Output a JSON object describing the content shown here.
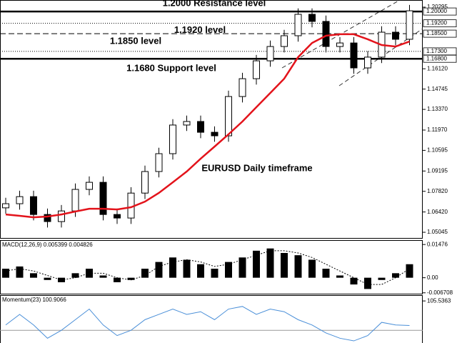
{
  "chart_data": [
    {
      "type": "candlestick",
      "annotation": "EURUSD Daily timeframe",
      "open": [
        1.067,
        1.0698,
        1.0746,
        1.0625,
        1.0577,
        1.0649,
        1.0795,
        1.0843,
        1.0625,
        1.0601,
        1.077,
        1.0916,
        1.1037,
        1.1231,
        1.1255,
        1.1182,
        1.1158,
        1.1424,
        1.1545,
        1.1666,
        1.1763,
        1.1836,
        1.1981,
        1.1933,
        1.1763,
        1.1787,
        1.1618,
        1.1691,
        1.186,
        1.1812
      ],
      "high": [
        1.0738,
        1.0786,
        1.0786,
        1.0665,
        1.0689,
        1.0835,
        1.0883,
        1.0883,
        1.0665,
        1.081,
        1.0956,
        1.1077,
        1.1271,
        1.1295,
        1.1295,
        1.1222,
        1.1464,
        1.1585,
        1.1706,
        1.1803,
        1.1876,
        1.2021,
        1.2021,
        1.1973,
        1.1827,
        1.1827,
        1.1731,
        1.19,
        1.19,
        1.2045
      ],
      "low": [
        1.063,
        1.0658,
        1.0585,
        1.0537,
        1.0537,
        1.0609,
        1.0755,
        1.0585,
        1.0561,
        1.0561,
        1.073,
        1.0876,
        1.0997,
        1.1191,
        1.1142,
        1.1118,
        1.1118,
        1.1384,
        1.1505,
        1.1626,
        1.1723,
        1.1796,
        1.1893,
        1.1723,
        1.1723,
        1.1578,
        1.1578,
        1.1651,
        1.1772,
        1.1772
      ],
      "close": [
        1.0698,
        1.0746,
        1.0625,
        1.0577,
        1.0649,
        1.0795,
        1.0843,
        1.0625,
        1.0601,
        1.077,
        1.0916,
        1.1037,
        1.1231,
        1.1255,
        1.1182,
        1.1158,
        1.1424,
        1.1545,
        1.1666,
        1.1763,
        1.1836,
        1.1981,
        1.1933,
        1.1763,
        1.1787,
        1.1618,
        1.1691,
        1.186,
        1.1812,
        1.2005
      ],
      "ma": [
        1.0625,
        1.0616,
        1.0606,
        1.0611,
        1.0625,
        1.0645,
        1.0664,
        1.0664,
        1.0659,
        1.0674,
        1.0712,
        1.0771,
        1.0843,
        1.0916,
        1.1003,
        1.1085,
        1.1168,
        1.1255,
        1.1352,
        1.1448,
        1.1545,
        1.1691,
        1.1787,
        1.1836,
        1.1846,
        1.1846,
        1.1812,
        1.1773,
        1.1763,
        1.1797
      ],
      "ma_color": "#e3131b",
      "ylim": [
        1.0466,
        1.2078
      ],
      "yticks": [
        1.20295,
        {
          "value": 1.1612,
          "label": "1.16120"
        },
        1.14745,
        {
          "value": 1.1337,
          "label": "1.13370"
        },
        {
          "value": 1.1197,
          "label": "1.11970"
        },
        1.10595,
        1.09195,
        {
          "value": 1.0782,
          "label": "1.07820"
        },
        {
          "value": 1.0642,
          "label": "1.06420"
        },
        1.05045
      ],
      "levels": [
        {
          "value": 1.2,
          "label": "1.20000",
          "style": "thick",
          "text": "1.2000 Resistance level"
        },
        {
          "value": 1.192,
          "label": "1.19200",
          "style": "dotted",
          "text": "1.1920 level"
        },
        {
          "value": 1.185,
          "label": "1.18500",
          "style": "dashed",
          "text": "1.1850 level"
        },
        {
          "value": 1.173,
          "label": "1.17300",
          "style": "dotted"
        },
        {
          "value": 1.168,
          "label": "1.16800",
          "style": "thick",
          "text": "1.1680 Support level"
        }
      ]
    },
    {
      "type": "macd",
      "title": "MACD(12,26,9) 0.005399 0.004826",
      "values": [
        0.004,
        0.005,
        0.002,
        -0.001,
        -0.002,
        0.002,
        0.004,
        0.001,
        -0.002,
        -0.001,
        0.004,
        0.007,
        0.009,
        0.008,
        0.006,
        0.004,
        0.007,
        0.009,
        0.012,
        0.013,
        0.011,
        0.01,
        0.008,
        0.004,
        0.001,
        -0.003,
        -0.005,
        -0.001,
        0.002,
        0.006
      ],
      "signal": [
        0.003,
        0.004,
        0.003,
        0.001,
        -0.001,
        0.0,
        0.002,
        0.002,
        0.0,
        -0.001,
        0.001,
        0.005,
        0.007,
        0.008,
        0.007,
        0.005,
        0.006,
        0.008,
        0.01,
        0.012,
        0.012,
        0.011,
        0.009,
        0.006,
        0.003,
        0.0,
        -0.003,
        -0.003,
        0.0,
        0.004
      ],
      "ylim": [
        -0.0071,
        0.0164
      ],
      "yticks": [
        0.01476,
        {
          "value": 0,
          "label": "0.00"
        },
        -0.006708
      ]
    },
    {
      "type": "line",
      "title": "Momentum(23) 100.9066",
      "values": [
        101,
        103,
        101,
        98.5,
        100,
        102,
        104,
        101,
        99,
        100,
        102,
        103,
        104,
        103,
        103.5,
        102,
        104,
        104.5,
        103,
        104,
        103.5,
        102,
        101,
        99.5,
        98.5,
        98,
        99,
        101.5,
        101,
        100.9066
      ],
      "color": "#4a8fd8",
      "hline": 100,
      "ylim": [
        97.6,
        106.5
      ],
      "yticks": [
        105.5363
      ]
    }
  ]
}
